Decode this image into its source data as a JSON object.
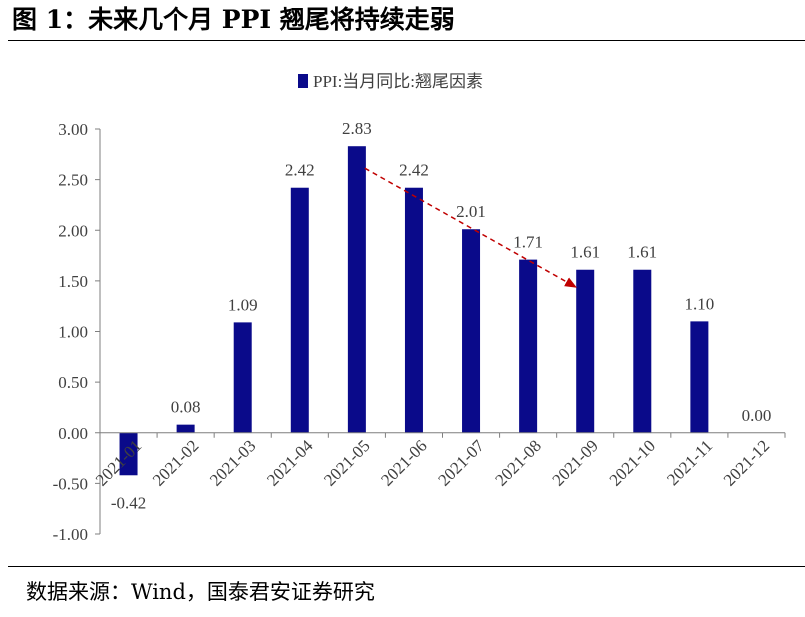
{
  "figure": {
    "title": "图 1：未来几个月 PPI 翘尾将持续走弱",
    "source": "数据来源：Wind，国泰君安证券研究"
  },
  "colors": {
    "bar": "#0a0a8a",
    "arrow": "#c00000",
    "axis": "#7f7f7f",
    "text": "#404040"
  },
  "chart_data": {
    "type": "bar",
    "categories": [
      "2021-01",
      "2021-02",
      "2021-03",
      "2021-04",
      "2021-05",
      "2021-06",
      "2021-07",
      "2021-08",
      "2021-09",
      "2021-10",
      "2021-11",
      "2021-12"
    ],
    "series": [
      {
        "name": "PPI:当月同比:翘尾因素",
        "values": [
          -0.42,
          0.08,
          1.09,
          2.42,
          2.83,
          2.42,
          2.01,
          1.71,
          1.61,
          1.61,
          1.1,
          0.0
        ]
      }
    ],
    "data_labels": [
      "-0.42",
      "0.08",
      "1.09",
      "2.42",
      "2.83",
      "2.42",
      "2.01",
      "1.71",
      "1.61",
      "1.61",
      "1.10",
      "0.00"
    ],
    "ylim": [
      -1.0,
      3.0
    ],
    "yticks": [
      "3.00",
      "2.50",
      "2.00",
      "1.50",
      "1.00",
      "0.50",
      "0.00",
      "-0.50",
      "-1.00"
    ],
    "legend": "top-center",
    "grid": false,
    "annotation": {
      "type": "dashed-arrow",
      "from_category": "2021-05",
      "to_category": "2021-09"
    }
  }
}
